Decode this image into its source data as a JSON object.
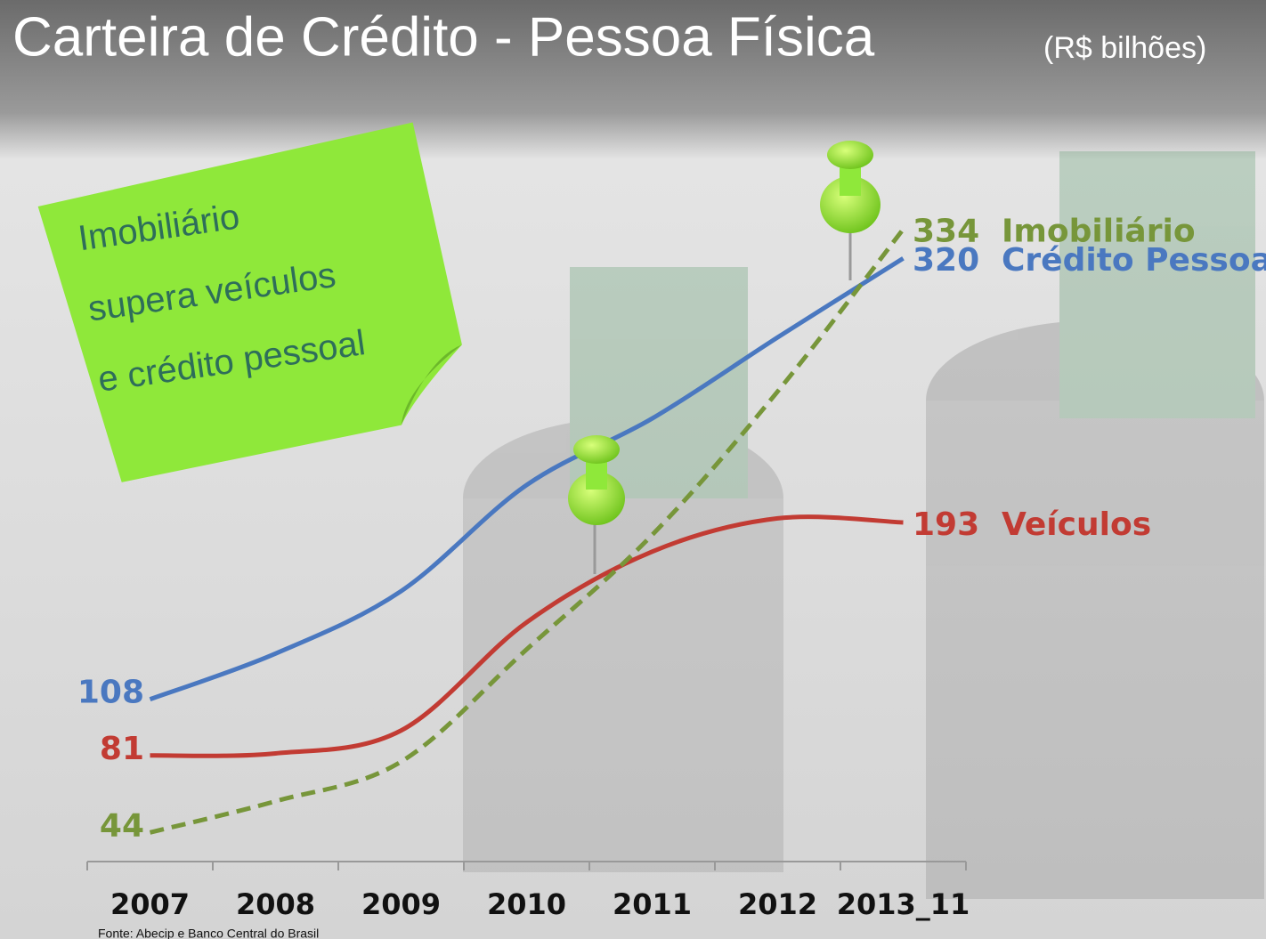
{
  "chart_data": {
    "type": "line",
    "title": "Carteira de Crédito - Pessoa Física",
    "subtitle": "(R$ bilhões)",
    "annotation": [
      "Imobiliário",
      "supera veículos",
      "e crédito pessoal"
    ],
    "source": "Fonte: Abecip e Banco Central do Brasil",
    "categories": [
      "2007",
      "2008",
      "2009",
      "2010",
      "2011",
      "2012",
      "2013_11"
    ],
    "ylim": [
      30,
      380
    ],
    "series": [
      {
        "name": "Crédito Pessoal",
        "color": "#4a78c0",
        "dashed": false,
        "values": [
          108,
          130,
          160,
          211,
          243,
          282,
          320
        ]
      },
      {
        "name": "Veículos",
        "color": "#c23b33",
        "dashed": false,
        "values": [
          81,
          82,
          93,
          145,
          179,
          195,
          193
        ]
      },
      {
        "name": "Imobiliário",
        "color": "#77963a",
        "dashed": true,
        "values": [
          44,
          59,
          78,
          132,
          187,
          256,
          334
        ]
      }
    ]
  }
}
